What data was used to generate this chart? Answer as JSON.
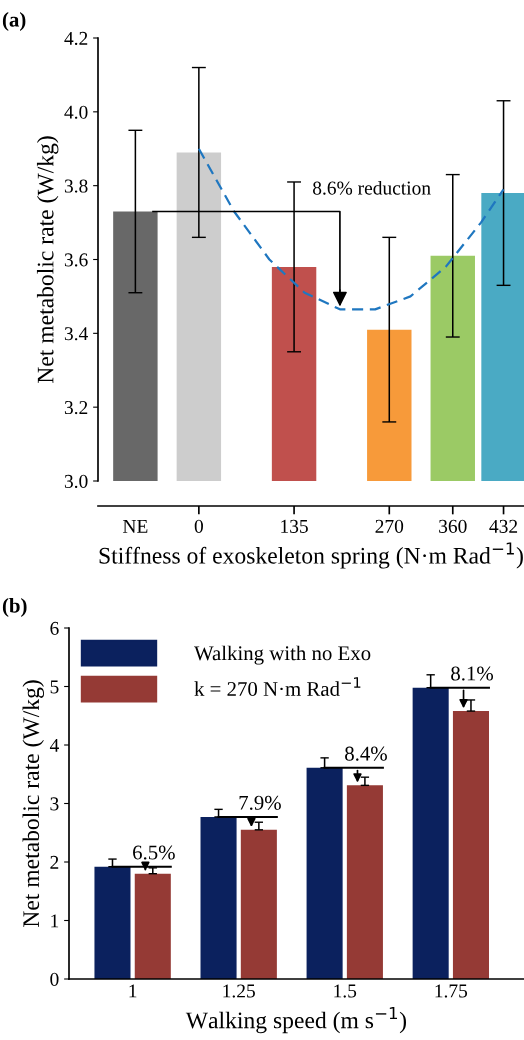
{
  "chart_data": [
    {
      "type": "bar",
      "title": "(a)",
      "xlabel": "Stiffness of exoskeleton spring (N·m Rad$^{−1}$)",
      "ylabel": "Net metabolic rate (W/kg)",
      "x": [
        -90,
        0,
        135,
        270,
        360,
        432
      ],
      "series": [
        {
          "values": [
            3.73,
            3.89,
            3.58,
            3.41,
            3.61,
            3.78
          ],
          "colors": [
            "#686868",
            "#cdcdcd",
            "#c0504d",
            "#f79a3a",
            "#9bca65",
            "#4aaac4"
          ],
          "errors": [
            0.22,
            0.23,
            0.23,
            0.25,
            0.22,
            0.25
          ]
        },
        {
          "type": "line",
          "color": "#1f77c0",
          "line_style": "dashed",
          "marker": "none",
          "x": [
            0,
            50,
            100,
            150,
            200,
            250,
            300,
            350,
            400,
            432
          ],
          "values": [
            3.9,
            3.73,
            3.6,
            3.51,
            3.465,
            3.465,
            3.5,
            3.58,
            3.7,
            3.79
          ]
        }
      ],
      "annotations": [
        "8.6% reduction"
      ],
      "xlim": [
        -143,
        461
      ],
      "xticks": [
        {
          "value": -90,
          "label": "NE"
        },
        0,
        135,
        270,
        360,
        432
      ],
      "ylim": [
        3.0,
        4.2
      ],
      "yticks": [
        {
          "value": 3.0,
          "label": "3.0"
        },
        {
          "value": 3.2,
          "label": "3.2"
        },
        {
          "value": 3.4,
          "label": "3.4"
        },
        {
          "value": 3.6,
          "label": "3.6"
        },
        {
          "value": 3.8,
          "label": "3.8"
        },
        {
          "value": 4.0,
          "label": "4.0"
        },
        {
          "value": 4.2,
          "label": "4.2"
        }
      ],
      "grid": false,
      "legend": false
    },
    {
      "type": "bar",
      "title": "(b)",
      "xlabel": "Walking speed (m s$^{−1}$)",
      "ylabel": "Net metabolic rate (W/kg)",
      "categories": [
        "1",
        "1.25",
        "1.5",
        "1.75"
      ],
      "series": [
        {
          "name": "Walking with no Exo",
          "color": "#0b215e",
          "values": [
            1.92,
            2.77,
            3.61,
            4.98
          ],
          "errors": [
            [
              1.92,
              2.05
            ],
            [
              2.77,
              2.9
            ],
            [
              3.61,
              3.78
            ],
            [
              4.98,
              5.2
            ]
          ]
        },
        {
          "name": "k = 270 N·m Rad$^{−1}$",
          "color": "#953a35",
          "values": [
            1.8,
            2.55,
            3.31,
            4.58
          ],
          "errors": [
            [
              1.8,
              1.9
            ],
            [
              2.55,
              2.68
            ],
            [
              3.31,
              3.45
            ],
            [
              4.58,
              4.77
            ]
          ]
        }
      ],
      "annotations": [
        {
          "text": "6.5%",
          "x": "1",
          "y": 1.92
        },
        {
          "text": "7.9%",
          "x": "1.25",
          "y": 2.77
        },
        {
          "text": "8.4%",
          "x": "1.5",
          "y": 3.61
        },
        {
          "text": "8.1%",
          "x": "1.75",
          "y": 4.98
        }
      ],
      "ylim": [
        0,
        6
      ],
      "yticks": [
        0,
        1,
        2,
        3,
        4,
        5,
        6
      ],
      "grid": false,
      "legend": "top left"
    }
  ]
}
